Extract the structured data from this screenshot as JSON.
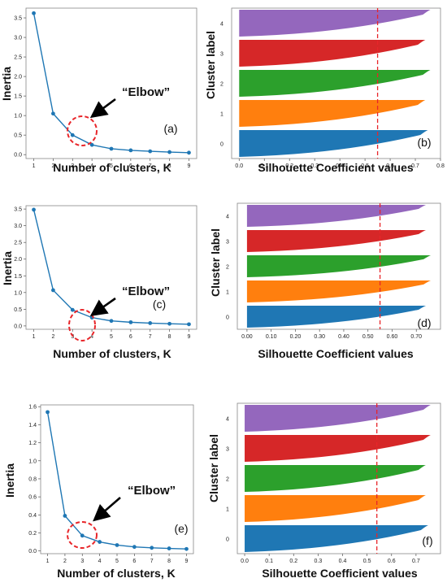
{
  "chart_data": [
    {
      "type": "line",
      "panel_label": "(a)",
      "annotation": "“Elbow”",
      "xlabel": "Number of clusters, K",
      "ylabel": "Inertia",
      "x": [
        1,
        2,
        3,
        4,
        5,
        6,
        7,
        8,
        9
      ],
      "y": [
        3.62,
        1.05,
        0.5,
        0.25,
        0.15,
        0.11,
        0.085,
        0.065,
        0.05
      ],
      "xticks": [
        "1",
        "2",
        "3",
        "4",
        "5",
        "6",
        "7",
        "8",
        "9"
      ],
      "yticks": [
        "0.0",
        "0.5",
        "1.0",
        "1.5",
        "2.0",
        "2.5",
        "3.0",
        "3.5"
      ],
      "ylim": [
        -0.1,
        3.75
      ],
      "line_color": "#1f77b4",
      "elbow_k": 3
    },
    {
      "type": "area",
      "panel_label": "(b)",
      "xlabel": "Silhouette Coefficient values",
      "ylabel": "Cluster label",
      "clusters": [
        "0",
        "1",
        "2",
        "3",
        "4"
      ],
      "cluster_colors": [
        "#1f77b4",
        "#ff7f0e",
        "#2ca02c",
        "#d62728",
        "#9467bd"
      ],
      "cluster_max": [
        0.75,
        0.74,
        0.76,
        0.74,
        0.76
      ],
      "average_line": 0.55,
      "xticks": [
        "0.0",
        "0.1",
        "0.2",
        "0.3",
        "0.4",
        "0.5",
        "0.6",
        "0.7",
        "0.8"
      ],
      "xlim": [
        -0.03,
        0.8
      ]
    },
    {
      "type": "line",
      "panel_label": "(c)",
      "annotation": "“Elbow”",
      "xlabel": "Number of clusters, K",
      "ylabel": "Inertia",
      "x": [
        1,
        2,
        3,
        4,
        5,
        6,
        7,
        8,
        9
      ],
      "y": [
        3.48,
        1.07,
        0.48,
        0.25,
        0.15,
        0.11,
        0.085,
        0.065,
        0.05
      ],
      "xticks": [
        "1",
        "2",
        "3",
        "4",
        "5",
        "6",
        "7",
        "8",
        "9"
      ],
      "yticks": [
        "0.0",
        "0.5",
        "1.0",
        "1.5",
        "2.0",
        "2.5",
        "3.0",
        "3.5"
      ],
      "ylim": [
        -0.1,
        3.6
      ],
      "line_color": "#1f77b4",
      "elbow_k": 3
    },
    {
      "type": "area",
      "panel_label": "(d)",
      "xlabel": "Silhouette Coefficient values",
      "ylabel": "Cluster label",
      "clusters": [
        "0",
        "1",
        "2",
        "3",
        "4"
      ],
      "cluster_colors": [
        "#1f77b4",
        "#ff7f0e",
        "#2ca02c",
        "#d62728",
        "#9467bd"
      ],
      "cluster_max": [
        0.74,
        0.76,
        0.76,
        0.74,
        0.74
      ],
      "average_line": 0.55,
      "xticks": [
        "0.00",
        "0.10",
        "0.20",
        "0.30",
        "0.40",
        "0.50",
        "0.60",
        "0.70"
      ],
      "xlim": [
        -0.04,
        0.8
      ]
    },
    {
      "type": "line",
      "panel_label": "(e)",
      "annotation": "“Elbow”",
      "xlabel": "Number of clusters, K",
      "ylabel": "Inertia",
      "x": [
        1,
        2,
        3,
        4,
        5,
        6,
        7,
        8,
        9
      ],
      "y": [
        1.54,
        0.39,
        0.17,
        0.1,
        0.065,
        0.045,
        0.035,
        0.028,
        0.022
      ],
      "xticks": [
        "1",
        "2",
        "3",
        "4",
        "5",
        "6",
        "7",
        "8",
        "9"
      ],
      "yticks": [
        "0.0",
        "0.2",
        "0.4",
        "0.6",
        "0.8",
        "1.0",
        "1.2",
        "1.4",
        "1.6"
      ],
      "ylim": [
        -0.03,
        1.62
      ],
      "line_color": "#1f77b4",
      "elbow_k": 3
    },
    {
      "type": "area",
      "panel_label": "(f)",
      "xlabel": "Silhouette Coefficient values",
      "ylabel": "Cluster label",
      "clusters": [
        "0",
        "1",
        "2",
        "3",
        "4"
      ],
      "cluster_colors": [
        "#1f77b4",
        "#ff7f0e",
        "#2ca02c",
        "#d62728",
        "#9467bd"
      ],
      "cluster_max": [
        0.75,
        0.74,
        0.74,
        0.76,
        0.76
      ],
      "average_line": 0.54,
      "xticks": [
        "0.0",
        "0.1",
        "0.2",
        "0.3",
        "0.4",
        "0.5",
        "0.6",
        "0.7"
      ],
      "xlim": [
        -0.03,
        0.8
      ]
    }
  ]
}
